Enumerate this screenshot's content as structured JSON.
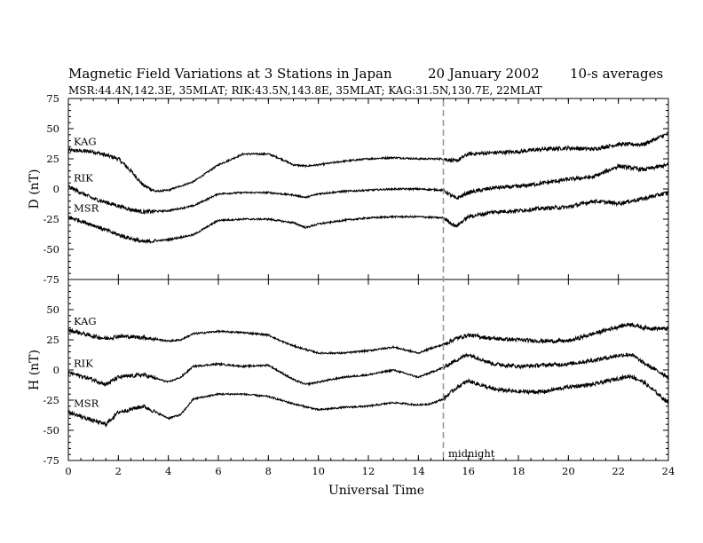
{
  "chart_data": {
    "type": "line",
    "title": "Magnetic Field Variations at 3 Stations in Japan",
    "date": "20 January 2002",
    "averaging": "10-s averages",
    "stations_line": "MSR:44.4N,142.3E, 35MLAT;  RIK:43.5N,143.8E, 35MLAT;  KAG:31.5N,130.7E, 22MLAT",
    "xlabel": "Universal Time",
    "xlim": [
      0,
      24
    ],
    "xticks": [
      "0",
      "2",
      "4",
      "6",
      "8",
      "10",
      "12",
      "14",
      "16",
      "18",
      "20",
      "22",
      "24"
    ],
    "annotation": {
      "text": "midnight",
      "x": 15
    },
    "grid": false,
    "panels": [
      {
        "ylabel": "D (nT)",
        "ylim": [
          -75,
          75
        ],
        "yticks": [
          "75",
          "50",
          "25",
          "0",
          "-25",
          "-50",
          "-75"
        ],
        "series": [
          {
            "name": "KAG",
            "x": [
              0,
              1,
              2,
              2.5,
              3,
              3.5,
              4,
              5,
              6,
              7,
              8,
              8.5,
              9,
              9.5,
              10,
              11,
              12,
              13,
              14,
              15,
              15.5,
              16,
              17,
              18,
              19,
              20,
              21,
              22,
              23,
              24
            ],
            "y": [
              32,
              31,
              25,
              15,
              3,
              -2,
              -1,
              6,
              20,
              29,
              29,
              25,
              20,
              19,
              20,
              23,
              25,
              26,
              25,
              25,
              23,
              29,
              30,
              31,
              33,
              34,
              33,
              37,
              37,
              46
            ]
          },
          {
            "name": "RIK",
            "x": [
              0,
              1,
              2,
              2.5,
              3,
              4,
              5,
              6,
              7,
              8,
              9,
              9.5,
              10,
              11,
              12,
              13,
              14,
              15,
              15.5,
              16,
              17,
              18,
              19,
              20,
              21,
              22,
              23,
              24
            ],
            "y": [
              2,
              -8,
              -14,
              -17,
              -19,
              -18,
              -14,
              -4,
              -3,
              -3,
              -5,
              -7,
              -4,
              -2,
              -1,
              0,
              0,
              -1,
              -8,
              -3,
              1,
              2,
              5,
              8,
              10,
              19,
              16,
              20
            ]
          },
          {
            "name": "MSR",
            "x": [
              0,
              1,
              2,
              2.5,
              3,
              4,
              5,
              6,
              7,
              8,
              9,
              9.5,
              10,
              11,
              12,
              13,
              14,
              15,
              15.5,
              16,
              17,
              18,
              19,
              20,
              21,
              22,
              23,
              24
            ],
            "y": [
              -23,
              -30,
              -38,
              -41,
              -44,
              -42,
              -38,
              -26,
              -25,
              -25,
              -28,
              -32,
              -29,
              -26,
              -24,
              -23,
              -23,
              -24,
              -31,
              -23,
              -19,
              -18,
              -16,
              -15,
              -10,
              -12,
              -8,
              -3
            ]
          }
        ]
      },
      {
        "ylabel": "H (nT)",
        "ylim": [
          -75,
          75
        ],
        "yticks": [
          "75",
          "50",
          "25",
          "0",
          "-25",
          "-50",
          "-75"
        ],
        "series": [
          {
            "name": "KAG",
            "x": [
              0,
              1,
              1.5,
              2,
              3,
              4,
              4.5,
              5,
              6,
              7,
              8,
              8.5,
              9,
              10,
              11,
              12,
              13,
              14,
              14.5,
              15,
              15.5,
              16,
              17,
              18,
              19,
              20,
              21,
              22,
              22.5,
              23,
              24
            ],
            "y": [
              33,
              28,
              26,
              28,
              27,
              24,
              25,
              30,
              32,
              31,
              29,
              24,
              20,
              14,
              14,
              16,
              19,
              14,
              18,
              21,
              26,
              29,
              26,
              25,
              24,
              24,
              30,
              36,
              38,
              35,
              34
            ]
          },
          {
            "name": "RIK",
            "x": [
              0,
              1,
              1.5,
              2,
              3,
              4,
              4.5,
              5,
              6,
              7,
              8,
              8.5,
              9,
              9.5,
              10,
              11,
              12,
              13,
              14,
              14.5,
              15,
              15.5,
              16,
              17,
              18,
              19,
              20,
              21,
              22,
              22.5,
              23,
              24
            ],
            "y": [
              -2,
              -8,
              -12,
              -6,
              -4,
              -10,
              -6,
              3,
              5,
              3,
              4,
              -2,
              -8,
              -12,
              -10,
              -6,
              -4,
              0,
              -6,
              -2,
              2,
              8,
              13,
              5,
              3,
              4,
              5,
              8,
              12,
              13,
              6,
              -6
            ]
          },
          {
            "name": "MSR",
            "x": [
              0,
              1,
              1.5,
              2,
              3,
              4,
              4.5,
              5,
              6,
              7,
              8,
              8.5,
              9,
              10,
              11,
              12,
              13,
              14,
              14.5,
              15,
              15.5,
              16,
              17,
              18,
              19,
              20,
              21,
              22,
              22.5,
              23,
              24
            ],
            "y": [
              -35,
              -42,
              -45,
              -35,
              -30,
              -40,
              -37,
              -24,
              -20,
              -20,
              -22,
              -25,
              -28,
              -33,
              -31,
              -30,
              -27,
              -29,
              -28,
              -24,
              -15,
              -9,
              -16,
              -18,
              -18,
              -14,
              -12,
              -7,
              -5,
              -10,
              -27
            ]
          }
        ]
      }
    ]
  }
}
